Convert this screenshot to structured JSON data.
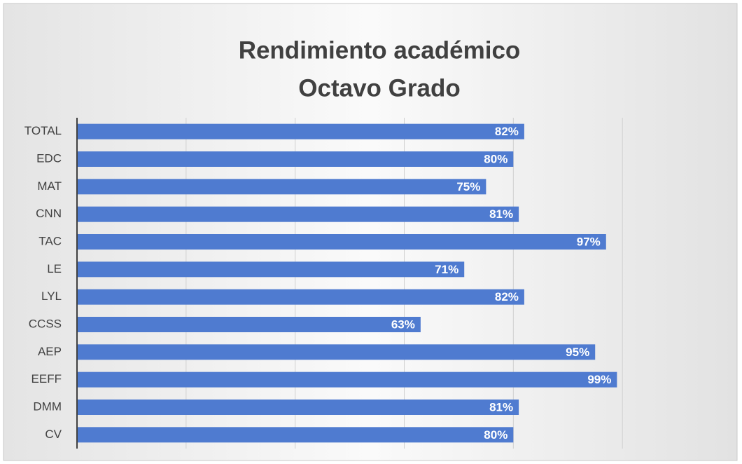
{
  "chart_data": {
    "type": "hbar",
    "title": [
      "Rendimiento académico",
      "Octavo Grado"
    ],
    "categories": [
      "TOTAL",
      "EDC",
      "MAT",
      "CNN",
      "TAC",
      "LE",
      "LYL",
      "CCSS",
      "AEP",
      "EEFF",
      "DMM",
      "CV"
    ],
    "values": [
      82,
      80,
      75,
      81,
      97,
      71,
      82,
      63,
      95,
      99,
      81,
      80
    ],
    "value_labels": [
      "82%",
      "80%",
      "75%",
      "81%",
      "97%",
      "71%",
      "82%",
      "63%",
      "95%",
      "99%",
      "81%",
      "80%"
    ],
    "color": "#4f7bd0",
    "xlim": [
      0,
      120
    ],
    "xticks": [
      0,
      20,
      40,
      60,
      80,
      100
    ],
    "grid": true
  }
}
